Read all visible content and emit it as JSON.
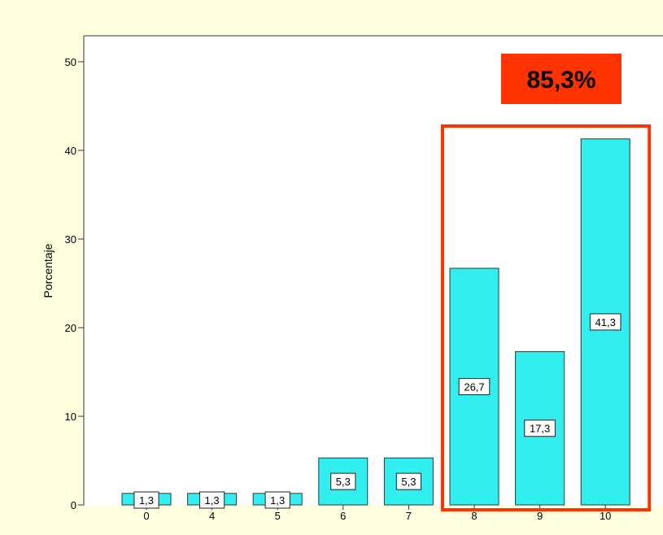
{
  "chart_data": {
    "type": "bar",
    "title": "",
    "xlabel": "",
    "ylabel": "Porcentaje",
    "categories": [
      "0",
      "4",
      "5",
      "6",
      "7",
      "8",
      "9",
      "10"
    ],
    "values": [
      1.3,
      1.3,
      1.3,
      5.3,
      5.3,
      26.7,
      17.3,
      41.3
    ],
    "data_labels": [
      "1,3",
      "1,3",
      "1,3",
      "5,3",
      "5,3",
      "26,7",
      "17,3",
      "41,3"
    ],
    "y_ticks": [
      0,
      10,
      20,
      30,
      40,
      50
    ],
    "ylim": [
      0,
      53
    ],
    "grid": false,
    "bar_color": "#33eeee",
    "highlight": {
      "categories": [
        "8",
        "9",
        "10"
      ],
      "label": "85,3%",
      "box_color": "#ff3300",
      "label_bg": "#ff3300"
    }
  }
}
